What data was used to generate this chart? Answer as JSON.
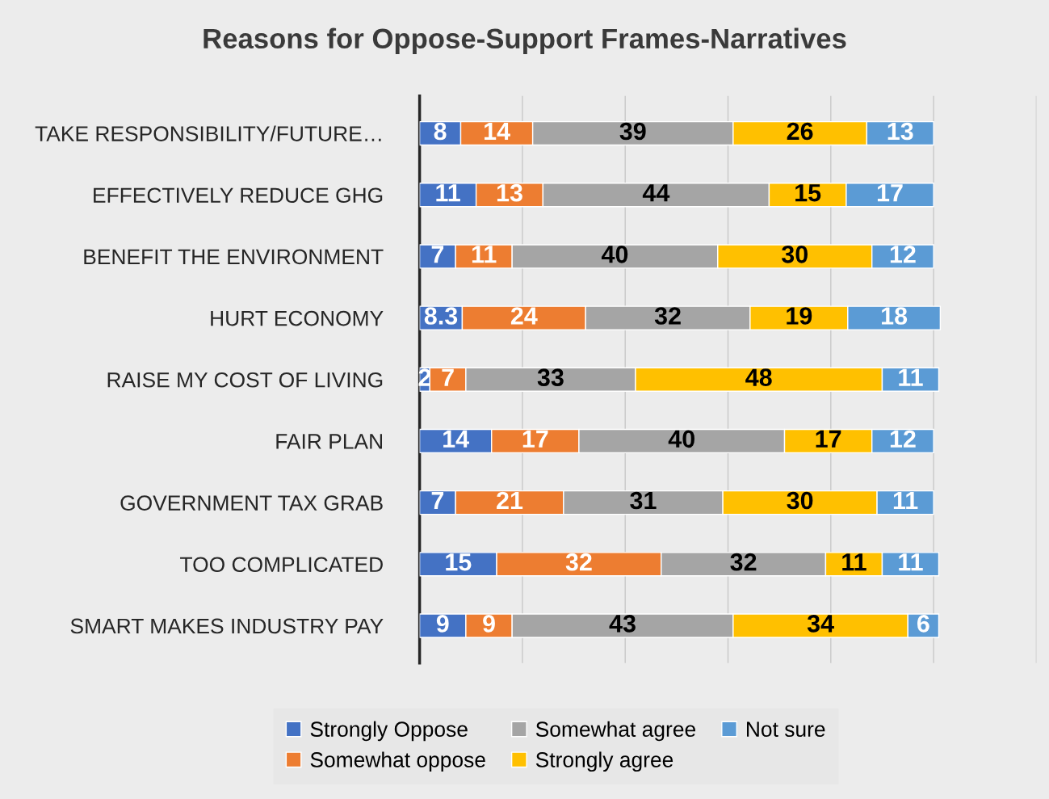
{
  "chart_data": {
    "type": "bar",
    "orientation": "horizontal",
    "stacked": true,
    "title": "Reasons for Oppose-Support Frames-Narratives",
    "categories": [
      "TAKE RESPONSIBILITY/FUTURE…",
      "EFFECTIVELY REDUCE GHG",
      "BENEFIT THE ENVIRONMENT",
      "HURT ECONOMY",
      "RAISE MY COST OF LIVING",
      "FAIR PLAN",
      "GOVERNMENT TAX GRAB",
      "TOO COMPLICATED",
      "SMART MAKES INDUSTRY PAY"
    ],
    "series": [
      {
        "name": "Strongly Oppose",
        "color": "#4472c4",
        "values": [
          8,
          11,
          7,
          8.3,
          2,
          14,
          7,
          15,
          9
        ]
      },
      {
        "name": "Somewhat oppose",
        "color": "#ed7d31",
        "values": [
          14,
          13,
          11,
          24,
          7,
          17,
          21,
          32,
          9
        ]
      },
      {
        "name": "Somewhat agree",
        "color": "#a5a5a5",
        "values": [
          39,
          44,
          40,
          32,
          33,
          40,
          31,
          32,
          43
        ]
      },
      {
        "name": "Strongly agree",
        "color": "#ffc000",
        "values": [
          26,
          15,
          30,
          19,
          48,
          17,
          30,
          11,
          34
        ]
      },
      {
        "name": "Not sure",
        "color": "#5b9bd5",
        "values": [
          13,
          17,
          12,
          18,
          11,
          12,
          11,
          11,
          6
        ]
      }
    ],
    "xlim": [
      0,
      120
    ],
    "xticks": [
      {
        "value": 0,
        "label": null
      },
      {
        "value": 20,
        "label": null
      },
      {
        "value": 40,
        "label": null
      },
      {
        "value": 60,
        "label": null
      },
      {
        "value": 80,
        "label": null
      },
      {
        "value": 100,
        "label": null
      },
      {
        "value": 120,
        "label": null
      }
    ],
    "tick_labels": "y",
    "grid": "x",
    "legend": "bottom",
    "data_labels": true
  }
}
